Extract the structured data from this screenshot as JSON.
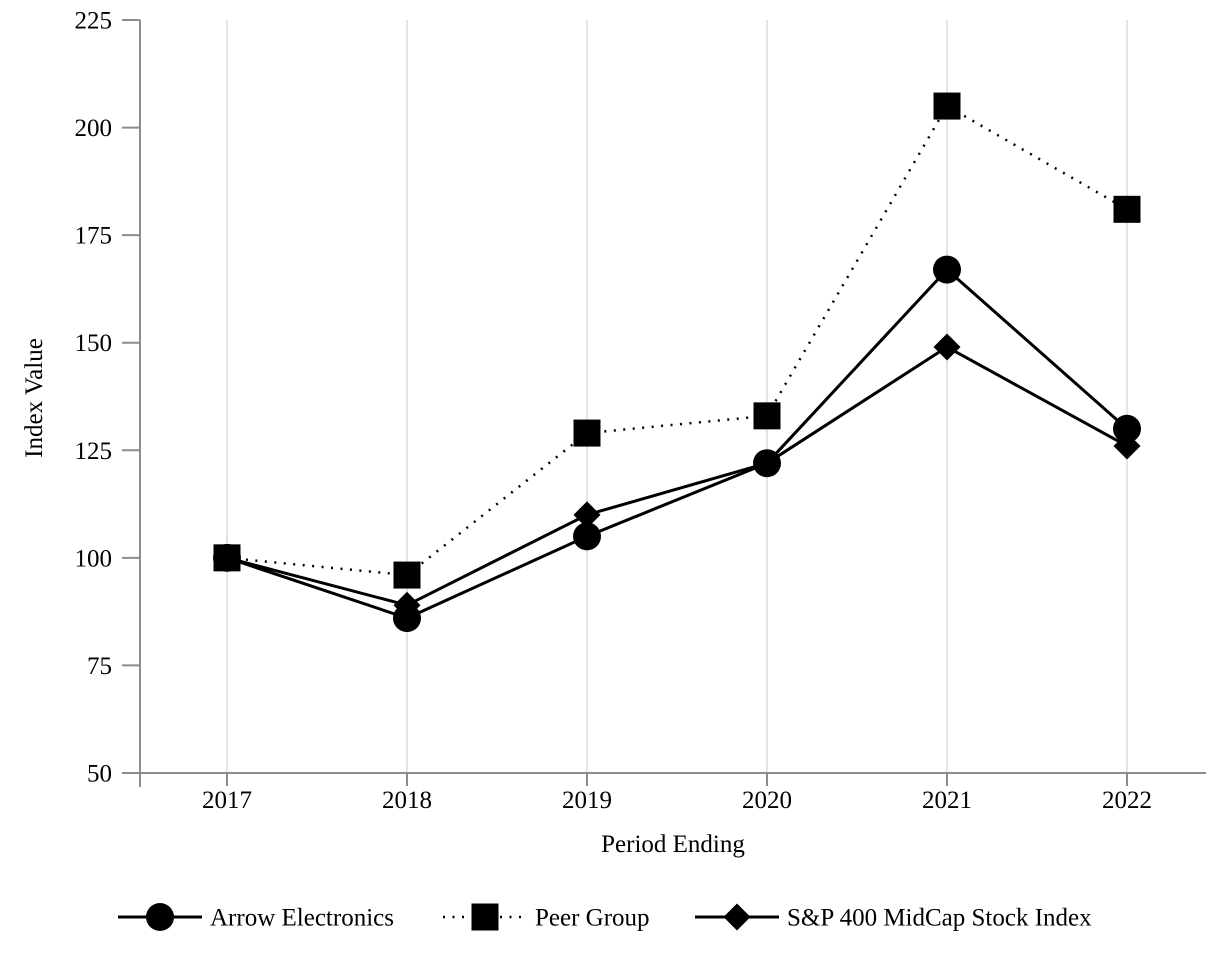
{
  "chart_data": {
    "type": "line",
    "title": "",
    "xlabel": "Period Ending",
    "ylabel": "Index Value",
    "x_categories": [
      "2017",
      "2018",
      "2019",
      "2020",
      "2021",
      "2022"
    ],
    "ylim": [
      50,
      225
    ],
    "yticks": [
      50,
      75,
      100,
      125,
      150,
      175,
      200,
      225
    ],
    "grid": "vertical-only",
    "legend_position": "bottom",
    "series": [
      {
        "name": "Arrow Electronics",
        "marker": "circle",
        "line": "solid",
        "values": [
          100,
          86,
          105,
          122,
          167,
          130
        ]
      },
      {
        "name": "Peer Group",
        "marker": "square",
        "line": "dotted",
        "values": [
          100,
          96,
          129,
          133,
          205,
          181
        ]
      },
      {
        "name": "S&P 400 MidCap Stock Index",
        "marker": "diamond",
        "line": "solid",
        "values": [
          100,
          89,
          110,
          122,
          149,
          126
        ]
      }
    ],
    "colors": {
      "series": "#000000",
      "gridline": "#dcdcdc",
      "axis": "#8c8c8c",
      "background": "#ffffff",
      "text": "#000000"
    }
  }
}
